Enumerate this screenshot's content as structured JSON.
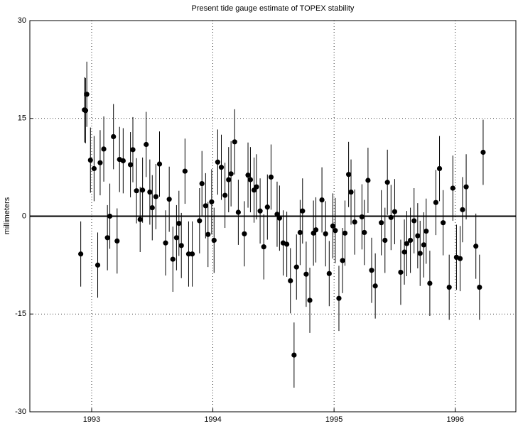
{
  "chart_data": {
    "type": "scatter",
    "title": "Present tide gauge estimate of TOPEX stability",
    "y_label": "millimeters",
    "x": [
      1992.91,
      1992.94,
      1992.95,
      1992.96,
      1992.99,
      1993.02,
      1993.05,
      1993.07,
      1993.1,
      1993.13,
      1993.15,
      1993.18,
      1993.21,
      1993.23,
      1993.26,
      1993.32,
      1993.34,
      1993.37,
      1993.4,
      1993.42,
      1993.45,
      1993.48,
      1993.5,
      1993.53,
      1993.56,
      1993.61,
      1993.64,
      1993.67,
      1993.7,
      1993.72,
      1993.74,
      1993.77,
      1993.8,
      1993.83,
      1993.89,
      1993.91,
      1993.94,
      1993.96,
      1993.99,
      1994.01,
      1994.04,
      1994.07,
      1994.1,
      1994.13,
      1994.15,
      1994.18,
      1994.21,
      1994.26,
      1994.29,
      1994.31,
      1994.34,
      1994.36,
      1994.39,
      1994.42,
      1994.45,
      1994.48,
      1994.53,
      1994.55,
      1994.58,
      1994.61,
      1994.64,
      1994.67,
      1994.69,
      1994.72,
      1994.74,
      1994.77,
      1994.8,
      1994.83,
      1994.85,
      1994.9,
      1994.93,
      1994.96,
      1994.99,
      1995.01,
      1995.04,
      1995.07,
      1995.09,
      1995.12,
      1995.14,
      1995.17,
      1995.23,
      1995.25,
      1995.28,
      1995.31,
      1995.34,
      1995.39,
      1995.42,
      1995.44,
      1995.47,
      1995.5,
      1995.55,
      1995.58,
      1995.6,
      1995.63,
      1995.66,
      1995.69,
      1995.71,
      1995.74,
      1995.76,
      1995.79,
      1995.84,
      1995.87,
      1995.9,
      1995.95,
      1995.98,
      1996.01,
      1996.04,
      1996.06,
      1996.09,
      1996.17,
      1996.2,
      1996.23
    ],
    "values": [
      -5.8,
      16.3,
      16.2,
      18.7,
      8.6,
      7.3,
      -7.5,
      8.2,
      10.3,
      -3.3,
      0,
      12.2,
      -3.8,
      8.7,
      8.5,
      7.9,
      10.2,
      3.9,
      -0.5,
      4.0,
      11.0,
      3.7,
      1.3,
      3.0,
      8.0,
      -4.1,
      2.6,
      -6.6,
      -3.3,
      -1.1,
      -4.5,
      6.9,
      -5.8,
      -5.8,
      -0.7,
      5.0,
      1.6,
      -2.8,
      2.2,
      -3.7,
      8.3,
      7.5,
      3.2,
      5.6,
      6.5,
      11.4,
      0.6,
      -2.7,
      6.3,
      5.6,
      4.0,
      4.5,
      0.8,
      -4.7,
      1.4,
      6.0,
      0.3,
      -0.3,
      -4.1,
      -4.3,
      -9.9,
      -21.3,
      -7.8,
      -2.5,
      0.8,
      -8.9,
      -12.9,
      -2.6,
      -2.1,
      2.5,
      -2.7,
      -8.8,
      -1.5,
      -2.2,
      -12.6,
      -6.8,
      -2.6,
      6.4,
      3.7,
      -0.9,
      -0.1,
      -2.5,
      5.5,
      -8.3,
      -10.7,
      -1.0,
      -3.7,
      5.2,
      -0.2,
      0.7,
      -8.6,
      -5.5,
      -4.2,
      -3.7,
      -0.7,
      -3.0,
      -5.7,
      -4.4,
      -2.3,
      -10.3,
      2.1,
      7.3,
      -1.0,
      -10.9,
      4.3,
      -6.3,
      -6.5,
      1.0,
      4.5,
      -4.6,
      -10.9,
      9.8
    ],
    "yerr": 5,
    "color": "#000000",
    "xlim": [
      1992.49,
      1996.5
    ],
    "ylim": [
      -30,
      30
    ],
    "xticks": [
      1993,
      1994,
      1995,
      1996
    ],
    "yticks": [
      -30,
      -15,
      0,
      15,
      30
    ],
    "grid": true,
    "zero_line": true
  }
}
